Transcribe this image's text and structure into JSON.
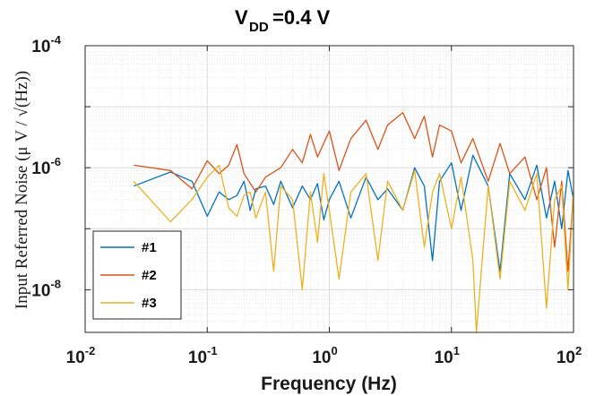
{
  "chart_data": {
    "type": "line",
    "title": {
      "base": "V",
      "sub": "DD",
      "rest": "=0.4 V"
    },
    "xlabel": "Frequency (Hz)",
    "ylabel": "Input Referred Noise (μ V / √(Hz))",
    "xscale": "log",
    "yscale": "log",
    "xlim": [
      0.01,
      100
    ],
    "ylim": [
      2e-09,
      0.0001
    ],
    "grid": "major and minor",
    "legend_position": "bottom-left",
    "x_ticks": [
      {
        "base": "10",
        "exp": "-2"
      },
      {
        "base": "10",
        "exp": "-1"
      },
      {
        "base": "10",
        "exp": "0"
      },
      {
        "base": "10",
        "exp": "1"
      },
      {
        "base": "10",
        "exp": "2"
      }
    ],
    "y_ticks": [
      {
        "base": "10",
        "exp": "-8"
      },
      {
        "base": "10",
        "exp": "-6"
      },
      {
        "base": "10",
        "exp": "-4"
      }
    ],
    "series": [
      {
        "name": "#1",
        "color": "#0072BD",
        "x": [
          0.025,
          0.05,
          0.075,
          0.1,
          0.125,
          0.15,
          0.175,
          0.2,
          0.225,
          0.25,
          0.3,
          0.35,
          0.4,
          0.5,
          0.6,
          0.7,
          0.8,
          0.9,
          1.0,
          1.2,
          1.5,
          2.0,
          2.5,
          3.0,
          4.0,
          5.0,
          6.0,
          7.0,
          8.0,
          10,
          12,
          15,
          20,
          25,
          30,
          40,
          50,
          60,
          70,
          80,
          90,
          100
        ],
        "y": [
          5e-07,
          8.5e-07,
          6e-07,
          1.6e-07,
          4e-07,
          3e-07,
          3.5e-07,
          6e-07,
          2e-07,
          4.5e-07,
          5e-07,
          2.5e-07,
          6e-07,
          2.2e-07,
          5e-07,
          3e-07,
          5.5e-07,
          1.4e-07,
          3e-07,
          6e-07,
          1.5e-07,
          7e-07,
          3e-07,
          4.5e-07,
          2e-07,
          1e-06,
          5e-07,
          3e-08,
          6e-07,
          1.2e-06,
          2e-07,
          1.6e-06,
          5e-07,
          2e-08,
          8e-07,
          3e-07,
          1.1e-06,
          1.5e-07,
          6e-07,
          1e-07,
          9e-07,
          3e-07
        ]
      },
      {
        "name": "#2",
        "color": "#D95319",
        "x": [
          0.025,
          0.05,
          0.075,
          0.1,
          0.125,
          0.15,
          0.175,
          0.2,
          0.25,
          0.3,
          0.4,
          0.5,
          0.6,
          0.7,
          0.8,
          1.0,
          1.2,
          1.5,
          2.0,
          2.5,
          3.0,
          4.0,
          5.0,
          6.0,
          7.0,
          8.0,
          10,
          12,
          15,
          20,
          25,
          30,
          40,
          50,
          60,
          70,
          80,
          90,
          100
        ],
        "y": [
          1.1e-06,
          9e-07,
          4.5e-07,
          1.3e-06,
          8e-07,
          1.1e-06,
          2.4e-06,
          8e-07,
          4e-07,
          7e-07,
          1e-06,
          2e-06,
          1.2e-06,
          3.5e-06,
          1.5e-06,
          4e-06,
          9e-07,
          3e-06,
          6e-06,
          2e-06,
          5e-06,
          8e-06,
          3e-06,
          7e-06,
          1.5e-06,
          5e-06,
          4e-06,
          1.2e-06,
          3e-06,
          6e-07,
          2.5e-06,
          8e-07,
          1.5e-06,
          3e-07,
          1e-06,
          5e-08,
          6e-07,
          2e-08,
          4e-07
        ]
      },
      {
        "name": "#3",
        "color": "#EDB120",
        "x": [
          0.025,
          0.05,
          0.075,
          0.1,
          0.125,
          0.15,
          0.175,
          0.2,
          0.225,
          0.25,
          0.3,
          0.35,
          0.4,
          0.5,
          0.6,
          0.7,
          0.8,
          0.9,
          1.0,
          1.2,
          1.5,
          2.0,
          2.5,
          3.0,
          4.0,
          5.0,
          6.0,
          7.0,
          8.0,
          10,
          12,
          15,
          16,
          20,
          25,
          30,
          40,
          50,
          60,
          70,
          80,
          90,
          100
        ],
        "y": [
          6e-07,
          1.3e-07,
          3e-07,
          7e-07,
          1.1e-06,
          2.2e-07,
          1.6e-07,
          3.5e-07,
          4e-07,
          1.5e-07,
          4e-07,
          2e-08,
          5e-07,
          3e-07,
          1e-08,
          4e-07,
          6e-08,
          8e-07,
          2e-07,
          1.5e-08,
          4e-07,
          8e-07,
          3e-08,
          6e-07,
          2e-07,
          9e-07,
          5e-08,
          4e-07,
          8e-07,
          1e-07,
          7e-07,
          3e-08,
          2e-09,
          5e-07,
          1.5e-08,
          6e-07,
          2e-07,
          8e-07,
          5e-09,
          3e-07,
          5e-07,
          1e-08,
          4e-07
        ]
      }
    ]
  }
}
